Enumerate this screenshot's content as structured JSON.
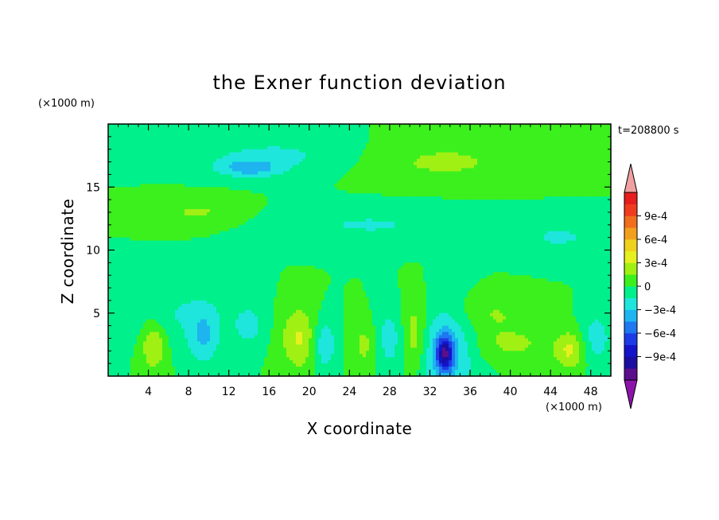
{
  "chart_data": {
    "type": "heatmap",
    "title": "the Exner function deviation",
    "xlabel": "X coordinate",
    "ylabel": "Z coordinate",
    "x_unit": "(×1000 m)",
    "y_unit": "(×1000 m)",
    "time_label": "t=208800 s",
    "xlim": [
      0,
      50
    ],
    "ylim": [
      0,
      20
    ],
    "x_ticks": [
      "4",
      "8",
      "12",
      "16",
      "20",
      "24",
      "28",
      "32",
      "36",
      "40",
      "44",
      "48"
    ],
    "y_ticks": [
      "5",
      "10",
      "15"
    ],
    "colorbar": {
      "levels": [
        -0.0012,
        -0.00105,
        -0.0009,
        -0.00075,
        -0.0006,
        -0.00045,
        -0.0003,
        -0.00015,
        0,
        0.00015,
        0.0003,
        0.00045,
        0.0006,
        0.00075,
        0.0009,
        0.00105
      ],
      "colors": [
        "#5a0f8c",
        "#1a0fa0",
        "#1414c8",
        "#1e3ce6",
        "#1e78f0",
        "#1eb4f0",
        "#1ee6dc",
        "#00f08c",
        "#3cf01e",
        "#a0f014",
        "#e6f01e",
        "#f0d21e",
        "#f0a01e",
        "#f06e1e",
        "#f03c1e",
        "#e61e1e"
      ],
      "under_color": "#8c14aa",
      "over_color": "#f0a0a0",
      "tick_labels": [
        "9e-4",
        "6e-4",
        "3e-4",
        "0",
        "−3e-4",
        "−6e-4",
        "−9e-4"
      ],
      "tick_values": [
        0.0009,
        0.0006,
        0.0003,
        0,
        -0.0003,
        -0.0006,
        -0.0009
      ]
    },
    "background_value": 0.0,
    "features": [
      {
        "x": 17,
        "z": 17.5,
        "rx": 9,
        "rz": 1.6,
        "value": -0.00018
      },
      {
        "x": 14,
        "z": 16.5,
        "rx": 3,
        "rz": 0.7,
        "value": -0.00032
      },
      {
        "x": 33,
        "z": 17,
        "rx": 9,
        "rz": 1.8,
        "value": 0.00018
      },
      {
        "x": 9,
        "z": 13,
        "rx": 5,
        "rz": 1.2,
        "value": 0.00017
      },
      {
        "x": 26,
        "z": 12,
        "rx": 11,
        "rz": 1.5,
        "value": -0.00016
      },
      {
        "x": 45,
        "z": 11,
        "rx": 5,
        "rz": 1.5,
        "value": -0.00016
      },
      {
        "x": 7,
        "z": 5,
        "rx": 6,
        "rz": 2.5,
        "value": -0.00015
      },
      {
        "x": 4.5,
        "z": 2.5,
        "rx": 1.2,
        "rz": 2.0,
        "value": 0.00033
      },
      {
        "x": 9.5,
        "z": 3,
        "rx": 1.5,
        "rz": 2.2,
        "value": -0.00028
      },
      {
        "x": 14,
        "z": 4,
        "rx": 1.5,
        "rz": 1.5,
        "value": -0.0002
      },
      {
        "x": 19,
        "z": 3,
        "rx": 1.8,
        "rz": 2.5,
        "value": 0.00032
      },
      {
        "x": 21.5,
        "z": 2.5,
        "rx": 1.2,
        "rz": 2.0,
        "value": -0.0003
      },
      {
        "x": 25.5,
        "z": 2.5,
        "rx": 1.3,
        "rz": 2.0,
        "value": 0.0002
      },
      {
        "x": 28,
        "z": 3,
        "rx": 1.6,
        "rz": 2.5,
        "value": -0.00022
      },
      {
        "x": 30.5,
        "z": 3,
        "rx": 1.4,
        "rz": 3.0,
        "value": 0.00033
      },
      {
        "x": 33.5,
        "z": 2,
        "rx": 3.0,
        "rz": 3.5,
        "value": -0.0004
      },
      {
        "x": 33.5,
        "z": 1.8,
        "rx": 0.8,
        "rz": 1.3,
        "value": -0.00075
      },
      {
        "x": 38,
        "z": 5,
        "rx": 4,
        "rz": 1.5,
        "value": 0.00016
      },
      {
        "x": 40,
        "z": 2.5,
        "rx": 5,
        "rz": 1.5,
        "value": 0.00017
      },
      {
        "x": 46,
        "z": 2,
        "rx": 1.5,
        "rz": 1.5,
        "value": 0.0003
      },
      {
        "x": 48.5,
        "z": 3,
        "rx": 1.5,
        "rz": 2.0,
        "value": -0.00025
      }
    ]
  }
}
